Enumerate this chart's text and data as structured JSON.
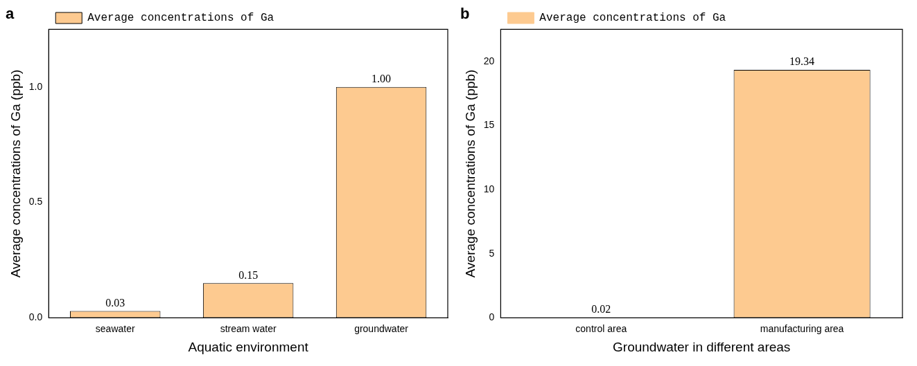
{
  "chart_data": [
    {
      "type": "bar",
      "title": "a",
      "xlabel": "Aquatic environment",
      "ylabel": "Average concentrations of Ga (ppb)",
      "categories": [
        "seawater",
        "stream water",
        "groundwater"
      ],
      "series": [
        {
          "name": "Average concentrations of Ga",
          "color": "#fdca90",
          "values": [
            0.03,
            0.15,
            1.0
          ],
          "value_labels": [
            "0.03",
            "0.15",
            "1.00"
          ]
        }
      ],
      "ylim": [
        0,
        1.25
      ],
      "yticks": [
        {
          "value": 0,
          "label": "0.0"
        },
        {
          "value": 0.5,
          "label": "0.5"
        },
        {
          "value": 1,
          "label": "1.0"
        }
      ],
      "grid": false,
      "legend": "top left"
    },
    {
      "type": "bar",
      "title": "b",
      "xlabel": "Groundwater in different areas",
      "ylabel": "Average concentrations of Ga (ppb)",
      "categories": [
        "control area",
        "manufacturing area"
      ],
      "series": [
        {
          "name": "Average concentrations of Ga",
          "color": "#fdca90",
          "values": [
            0.02,
            19.34
          ],
          "value_labels": [
            "0.02",
            "19.34"
          ]
        }
      ],
      "ylim": [
        0,
        22.5
      ],
      "yticks": [
        0,
        5,
        10,
        15,
        20
      ],
      "grid": false,
      "legend": "top left"
    }
  ]
}
